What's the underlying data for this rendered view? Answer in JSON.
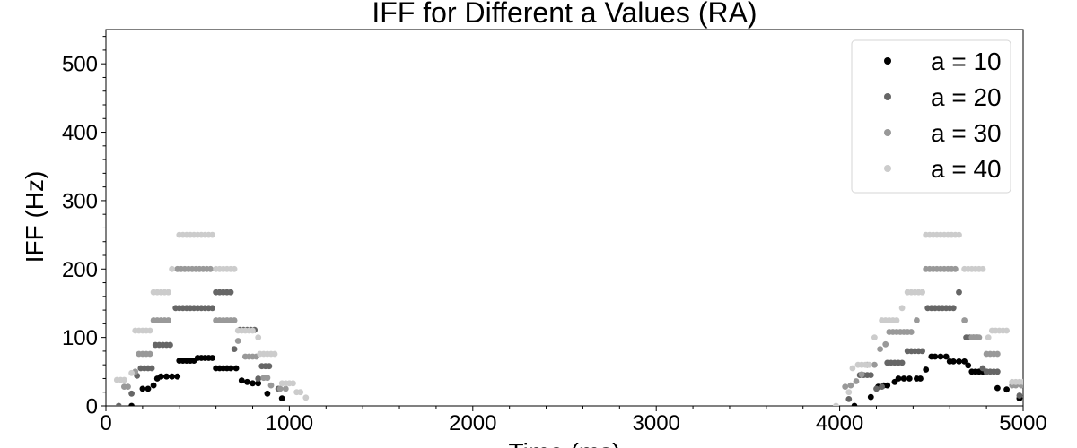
{
  "chart_data": {
    "type": "scatter",
    "title": "IFF for Different a Values (RA)",
    "xlabel": "Time (ms)",
    "ylabel": "IFF (Hz)",
    "xlim": [
      0,
      5000
    ],
    "ylim": [
      0,
      550
    ],
    "xticks": [
      0,
      1000,
      2000,
      3000,
      4000,
      5000
    ],
    "yticks": [
      0,
      100,
      200,
      300,
      400,
      500
    ],
    "grid": false,
    "legend_position": "top-right",
    "series": [
      {
        "name": "a = 10",
        "color": "#000000",
        "points": [
          [
            140,
            0
          ],
          [
            200,
            25
          ],
          [
            230,
            25
          ],
          [
            260,
            30
          ],
          [
            280,
            40
          ],
          [
            300,
            43
          ],
          [
            330,
            43
          ],
          [
            360,
            43
          ],
          [
            390,
            43
          ],
          [
            400,
            66
          ],
          [
            420,
            66
          ],
          [
            440,
            66
          ],
          [
            460,
            66
          ],
          [
            480,
            66
          ],
          [
            500,
            70
          ],
          [
            520,
            70
          ],
          [
            540,
            70
          ],
          [
            560,
            70
          ],
          [
            580,
            70
          ],
          [
            600,
            55
          ],
          [
            620,
            55
          ],
          [
            640,
            55
          ],
          [
            660,
            55
          ],
          [
            680,
            55
          ],
          [
            710,
            55
          ],
          [
            740,
            37
          ],
          [
            770,
            35
          ],
          [
            800,
            33
          ],
          [
            830,
            33
          ],
          [
            880,
            18
          ],
          [
            960,
            11
          ],
          [
            4080,
            0
          ],
          [
            4170,
            13
          ],
          [
            4210,
            28
          ],
          [
            4240,
            30
          ],
          [
            4260,
            30
          ],
          [
            4300,
            35
          ],
          [
            4320,
            40
          ],
          [
            4350,
            40
          ],
          [
            4380,
            40
          ],
          [
            4420,
            40
          ],
          [
            4440,
            40
          ],
          [
            4470,
            53
          ],
          [
            4500,
            72
          ],
          [
            4520,
            72
          ],
          [
            4550,
            72
          ],
          [
            4580,
            72
          ],
          [
            4600,
            65
          ],
          [
            4620,
            65
          ],
          [
            4650,
            65
          ],
          [
            4680,
            65
          ],
          [
            4700,
            59
          ],
          [
            4720,
            50
          ],
          [
            4740,
            50
          ],
          [
            4760,
            50
          ],
          [
            4780,
            50
          ],
          [
            4800,
            50
          ],
          [
            4860,
            26
          ],
          [
            4910,
            24
          ],
          [
            4980,
            11
          ]
        ]
      },
      {
        "name": "a = 20",
        "color": "#666666",
        "points": [
          [
            70,
            0
          ],
          [
            140,
            18
          ],
          [
            170,
            44
          ],
          [
            190,
            55
          ],
          [
            210,
            55
          ],
          [
            230,
            55
          ],
          [
            250,
            55
          ],
          [
            270,
            89
          ],
          [
            290,
            89
          ],
          [
            310,
            89
          ],
          [
            330,
            89
          ],
          [
            350,
            89
          ],
          [
            380,
            143
          ],
          [
            400,
            143
          ],
          [
            420,
            143
          ],
          [
            440,
            143
          ],
          [
            460,
            143
          ],
          [
            480,
            143
          ],
          [
            500,
            143
          ],
          [
            520,
            143
          ],
          [
            540,
            143
          ],
          [
            560,
            143
          ],
          [
            580,
            143
          ],
          [
            600,
            166
          ],
          [
            620,
            166
          ],
          [
            640,
            166
          ],
          [
            660,
            166
          ],
          [
            680,
            166
          ],
          [
            700,
            83
          ],
          [
            730,
            111
          ],
          [
            750,
            111
          ],
          [
            770,
            111
          ],
          [
            790,
            111
          ],
          [
            810,
            111
          ],
          [
            830,
            40
          ],
          [
            850,
            58
          ],
          [
            870,
            58
          ],
          [
            890,
            58
          ],
          [
            940,
            25
          ],
          [
            4050,
            10
          ],
          [
            4110,
            45
          ],
          [
            4130,
            45
          ],
          [
            4150,
            45
          ],
          [
            4170,
            45
          ],
          [
            4200,
            25
          ],
          [
            4230,
            28
          ],
          [
            4260,
            63
          ],
          [
            4280,
            63
          ],
          [
            4300,
            63
          ],
          [
            4320,
            63
          ],
          [
            4340,
            63
          ],
          [
            4370,
            80
          ],
          [
            4390,
            80
          ],
          [
            4410,
            80
          ],
          [
            4430,
            80
          ],
          [
            4450,
            80
          ],
          [
            4480,
            143
          ],
          [
            4500,
            143
          ],
          [
            4520,
            143
          ],
          [
            4540,
            143
          ],
          [
            4560,
            143
          ],
          [
            4580,
            143
          ],
          [
            4600,
            143
          ],
          [
            4620,
            143
          ],
          [
            4650,
            166
          ],
          [
            4690,
            100
          ],
          [
            4710,
            100
          ],
          [
            4730,
            100
          ],
          [
            4750,
            100
          ],
          [
            4780,
            55
          ],
          [
            4800,
            50
          ],
          [
            4820,
            50
          ],
          [
            4840,
            50
          ],
          [
            4860,
            50
          ],
          [
            4980,
            15
          ]
        ]
      },
      {
        "name": "a = 30",
        "color": "#999999",
        "points": [
          [
            100,
            28
          ],
          [
            120,
            28
          ],
          [
            160,
            50
          ],
          [
            180,
            76
          ],
          [
            200,
            76
          ],
          [
            220,
            76
          ],
          [
            240,
            76
          ],
          [
            260,
            125
          ],
          [
            280,
            125
          ],
          [
            300,
            125
          ],
          [
            320,
            125
          ],
          [
            340,
            125
          ],
          [
            390,
            200
          ],
          [
            410,
            200
          ],
          [
            430,
            200
          ],
          [
            450,
            200
          ],
          [
            470,
            200
          ],
          [
            490,
            200
          ],
          [
            510,
            200
          ],
          [
            530,
            200
          ],
          [
            550,
            200
          ],
          [
            570,
            200
          ],
          [
            600,
            125
          ],
          [
            620,
            125
          ],
          [
            640,
            125
          ],
          [
            660,
            125
          ],
          [
            680,
            125
          ],
          [
            700,
            125
          ],
          [
            720,
            95
          ],
          [
            760,
            72
          ],
          [
            780,
            72
          ],
          [
            800,
            72
          ],
          [
            820,
            72
          ],
          [
            860,
            41
          ],
          [
            880,
            41
          ],
          [
            900,
            30
          ],
          [
            950,
            25
          ],
          [
            980,
            25
          ],
          [
            4030,
            28
          ],
          [
            4060,
            30
          ],
          [
            4090,
            36
          ],
          [
            4120,
            46
          ],
          [
            4150,
            60
          ],
          [
            4190,
            60
          ],
          [
            4220,
            83
          ],
          [
            4250,
            90
          ],
          [
            4270,
            108
          ],
          [
            4290,
            108
          ],
          [
            4310,
            108
          ],
          [
            4330,
            108
          ],
          [
            4350,
            108
          ],
          [
            4370,
            108
          ],
          [
            4390,
            108
          ],
          [
            4420,
            125
          ],
          [
            4470,
            200
          ],
          [
            4490,
            200
          ],
          [
            4510,
            200
          ],
          [
            4530,
            200
          ],
          [
            4550,
            200
          ],
          [
            4570,
            200
          ],
          [
            4590,
            200
          ],
          [
            4610,
            200
          ],
          [
            4630,
            200
          ],
          [
            4680,
            125
          ],
          [
            4720,
            100
          ],
          [
            4740,
            100
          ],
          [
            4760,
            100
          ],
          [
            4800,
            76
          ],
          [
            4820,
            76
          ],
          [
            4840,
            76
          ],
          [
            4860,
            76
          ],
          [
            4940,
            30
          ],
          [
            4960,
            30
          ],
          [
            4990,
            30
          ]
        ]
      },
      {
        "name": "a = 40",
        "color": "#cccccc",
        "points": [
          [
            60,
            38
          ],
          [
            80,
            38
          ],
          [
            100,
            38
          ],
          [
            140,
            48
          ],
          [
            160,
            110
          ],
          [
            180,
            110
          ],
          [
            200,
            110
          ],
          [
            220,
            110
          ],
          [
            240,
            110
          ],
          [
            260,
            166
          ],
          [
            280,
            166
          ],
          [
            300,
            166
          ],
          [
            320,
            166
          ],
          [
            340,
            166
          ],
          [
            360,
            200
          ],
          [
            400,
            250
          ],
          [
            420,
            250
          ],
          [
            440,
            250
          ],
          [
            460,
            250
          ],
          [
            480,
            250
          ],
          [
            500,
            250
          ],
          [
            520,
            250
          ],
          [
            540,
            250
          ],
          [
            560,
            250
          ],
          [
            580,
            250
          ],
          [
            600,
            200
          ],
          [
            620,
            200
          ],
          [
            640,
            200
          ],
          [
            660,
            200
          ],
          [
            680,
            200
          ],
          [
            700,
            200
          ],
          [
            720,
            110
          ],
          [
            740,
            110
          ],
          [
            760,
            110
          ],
          [
            780,
            110
          ],
          [
            800,
            110
          ],
          [
            830,
            100
          ],
          [
            840,
            76
          ],
          [
            860,
            76
          ],
          [
            880,
            76
          ],
          [
            900,
            76
          ],
          [
            920,
            76
          ],
          [
            960,
            33
          ],
          [
            980,
            33
          ],
          [
            1000,
            33
          ],
          [
            1020,
            33
          ],
          [
            1040,
            20
          ],
          [
            1060,
            20
          ],
          [
            1090,
            12
          ],
          [
            3980,
            0
          ],
          [
            4050,
            20
          ],
          [
            4070,
            55
          ],
          [
            4100,
            60
          ],
          [
            4120,
            60
          ],
          [
            4140,
            60
          ],
          [
            4160,
            60
          ],
          [
            4190,
            100
          ],
          [
            4230,
            125
          ],
          [
            4250,
            125
          ],
          [
            4270,
            125
          ],
          [
            4290,
            125
          ],
          [
            4310,
            125
          ],
          [
            4340,
            143
          ],
          [
            4370,
            166
          ],
          [
            4390,
            166
          ],
          [
            4410,
            166
          ],
          [
            4430,
            166
          ],
          [
            4450,
            166
          ],
          [
            4470,
            250
          ],
          [
            4490,
            250
          ],
          [
            4510,
            250
          ],
          [
            4530,
            250
          ],
          [
            4550,
            250
          ],
          [
            4570,
            250
          ],
          [
            4590,
            250
          ],
          [
            4610,
            250
          ],
          [
            4630,
            250
          ],
          [
            4650,
            250
          ],
          [
            4680,
            200
          ],
          [
            4700,
            200
          ],
          [
            4720,
            200
          ],
          [
            4740,
            200
          ],
          [
            4760,
            200
          ],
          [
            4780,
            200
          ],
          [
            4810,
            100
          ],
          [
            4830,
            110
          ],
          [
            4850,
            110
          ],
          [
            4870,
            110
          ],
          [
            4890,
            110
          ],
          [
            4910,
            110
          ],
          [
            4940,
            35
          ],
          [
            4960,
            35
          ],
          [
            4980,
            35
          ],
          [
            5000,
            35
          ]
        ]
      }
    ]
  }
}
